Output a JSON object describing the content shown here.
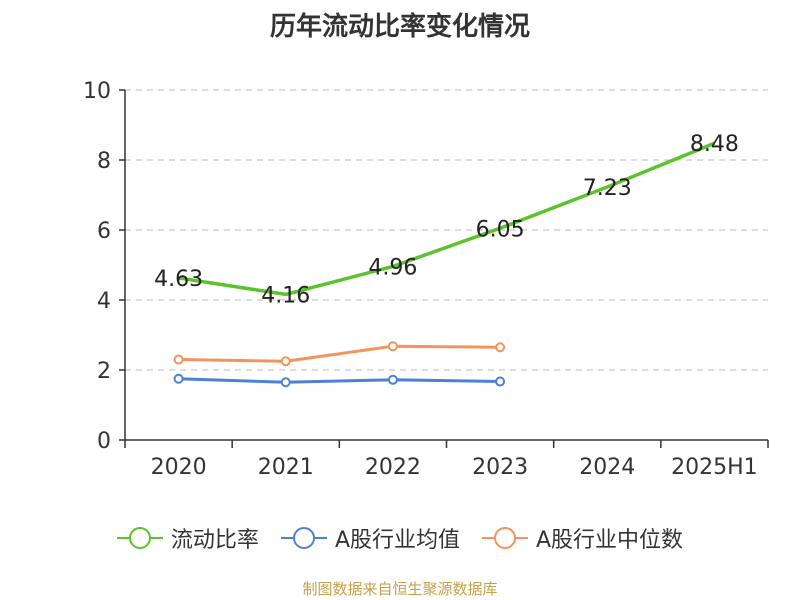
{
  "chart_data": {
    "type": "line",
    "title": "历年流动比率变化情况",
    "categories": [
      "2020",
      "2021",
      "2022",
      "2023",
      "2024",
      "2025H1"
    ],
    "ylim": [
      0,
      10
    ],
    "yticks": [
      0,
      2,
      4,
      6,
      8,
      10
    ],
    "grid": true,
    "legend_position": "bottom",
    "series": [
      {
        "name": "流动比率",
        "color": "#5cc22d",
        "values": [
          4.63,
          4.16,
          4.96,
          6.05,
          7.23,
          8.48
        ],
        "labels": [
          "4.63",
          "4.16",
          "4.96",
          "6.05",
          "7.23",
          "8.48"
        ],
        "show_markers": false
      },
      {
        "name": "A股行业均值",
        "color": "#4f80d6",
        "values": [
          1.75,
          1.65,
          1.72,
          1.67,
          null,
          null
        ],
        "show_markers": true
      },
      {
        "name": "A股行业中位数",
        "color": "#f4935d",
        "values": [
          2.3,
          2.25,
          2.68,
          2.65,
          null,
          null
        ],
        "show_markers": true
      }
    ]
  },
  "source": "制图数据来自恒生聚源数据库"
}
